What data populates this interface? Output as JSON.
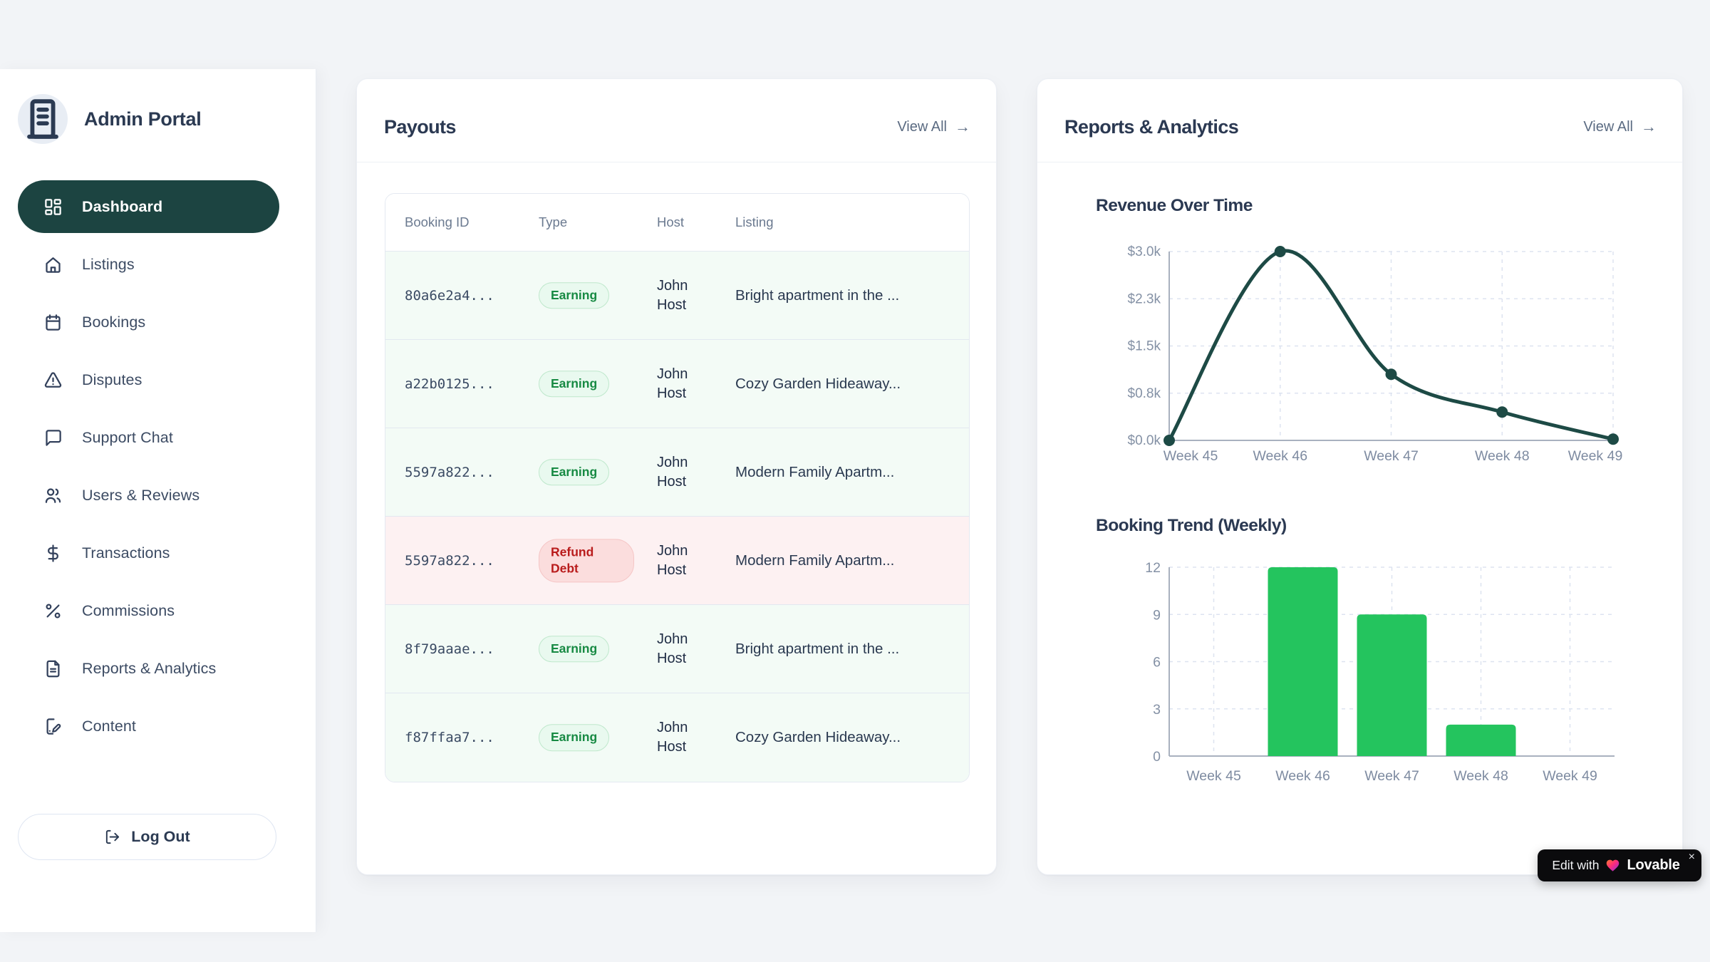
{
  "colors": {
    "page_bg": "#f2f4f7",
    "sidebar_active": "#1c4441",
    "line_stroke": "#1d4a45",
    "bar_green": "#24c45e",
    "earning_text": "#178a43",
    "earning_bg": "#e9f9ef",
    "refund_text": "#b91c1c",
    "refund_bg": "#fbdddd",
    "row_earning_bg": "#f3fbf6",
    "row_refund_bg": "#fdf1f2",
    "grid_dash": "#dde3f0",
    "axis": "#a9b1bf"
  },
  "sidebar": {
    "title": "Admin Portal",
    "items": [
      {
        "label": "Dashboard",
        "icon": "layout-dashboard",
        "active": true
      },
      {
        "label": "Listings",
        "icon": "home",
        "active": false
      },
      {
        "label": "Bookings",
        "icon": "calendar",
        "active": false
      },
      {
        "label": "Disputes",
        "icon": "alert-triangle",
        "active": false
      },
      {
        "label": "Support Chat",
        "icon": "message-square",
        "active": false
      },
      {
        "label": "Users & Reviews",
        "icon": "users",
        "active": false
      },
      {
        "label": "Transactions",
        "icon": "dollar-sign",
        "active": false
      },
      {
        "label": "Commissions",
        "icon": "percent",
        "active": false
      },
      {
        "label": "Reports & Analytics",
        "icon": "file-text",
        "active": false
      },
      {
        "label": "Content",
        "icon": "file-pen",
        "active": false
      }
    ],
    "logout_label": "Log Out"
  },
  "payouts": {
    "title": "Payouts",
    "view_all": "View All",
    "view_all_arrow": "→",
    "columns": [
      "Booking ID",
      "Type",
      "Host",
      "Listing"
    ],
    "rows": [
      {
        "id": "80a6e2a4...",
        "type": "Earning",
        "variant": "earning",
        "host": "John Host",
        "listing": "Bright apartment in the ..."
      },
      {
        "id": "a22b0125...",
        "type": "Earning",
        "variant": "earning",
        "host": "John Host",
        "listing": "Cozy Garden Hideaway..."
      },
      {
        "id": "5597a822...",
        "type": "Earning",
        "variant": "earning",
        "host": "John Host",
        "listing": "Modern Family Apartm..."
      },
      {
        "id": "5597a822...",
        "type": "Refund Debt",
        "variant": "refund",
        "host": "John Host",
        "listing": "Modern Family Apartm..."
      },
      {
        "id": "8f79aaae...",
        "type": "Earning",
        "variant": "earning",
        "host": "John Host",
        "listing": "Bright apartment in the ..."
      },
      {
        "id": "f87ffaa7...",
        "type": "Earning",
        "variant": "earning",
        "host": "John Host",
        "listing": "Cozy Garden Hideaway..."
      }
    ]
  },
  "reports": {
    "title": "Reports & Analytics",
    "view_all": "View All",
    "view_all_arrow": "→"
  },
  "chart_data": [
    {
      "type": "line",
      "title": "Revenue Over Time",
      "x": [
        "Week 45",
        "Week 46",
        "Week 47",
        "Week 48",
        "Week 49"
      ],
      "values": [
        0,
        3000,
        1050,
        450,
        20
      ],
      "ytick_values": [
        0,
        750,
        1500,
        2250,
        3000
      ],
      "ytick_labels": [
        "$0.0k",
        "$0.8k",
        "$1.5k",
        "$2.3k",
        "$3.0k"
      ],
      "ylim": [
        0,
        3000
      ],
      "grid": true,
      "legend": false,
      "line_color": "#1d4a45"
    },
    {
      "type": "bar",
      "title": "Booking Trend (Weekly)",
      "categories": [
        "Week 45",
        "Week 46",
        "Week 47",
        "Week 48",
        "Week 49"
      ],
      "values": [
        0,
        12,
        9,
        2,
        0
      ],
      "ytick_values": [
        0,
        3,
        6,
        9,
        12
      ],
      "ytick_labels": [
        "0",
        "3",
        "6",
        "9",
        "12"
      ],
      "ylim": [
        0,
        12
      ],
      "grid": true,
      "legend": false,
      "bar_color": "#24c45e"
    }
  ],
  "lovable": {
    "prefix": "Edit with",
    "brand": "Lovable",
    "close": "×"
  }
}
